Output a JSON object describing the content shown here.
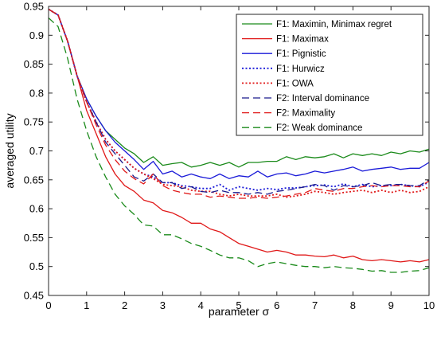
{
  "chart_data": {
    "type": "line",
    "xlabel": "parameter σ",
    "ylabel": "averaged utility",
    "xlim": [
      0,
      10
    ],
    "ylim": [
      0.45,
      0.95
    ],
    "xticks": [
      0,
      1,
      2,
      3,
      4,
      5,
      6,
      7,
      8,
      9,
      10
    ],
    "yticks": [
      0.45,
      0.5,
      0.55,
      0.6,
      0.65,
      0.7,
      0.75,
      0.8,
      0.85,
      0.9,
      0.95
    ],
    "ytick_labels": [
      "0.45",
      "0.5",
      "0.55",
      "0.6",
      "0.65",
      "0.7",
      "0.75",
      "0.8",
      "0.85",
      "0.9",
      "0.95"
    ],
    "grid": false,
    "legend_position": "top-right",
    "x": [
      0,
      0.25,
      0.5,
      0.75,
      1,
      1.25,
      1.5,
      1.75,
      2,
      2.25,
      2.5,
      2.75,
      3,
      3.25,
      3.5,
      3.75,
      4,
      4.25,
      4.5,
      4.75,
      5,
      5.25,
      5.5,
      5.75,
      6,
      6.25,
      6.5,
      6.75,
      7,
      7.25,
      7.5,
      7.75,
      8,
      8.25,
      8.5,
      8.75,
      9,
      9.25,
      9.5,
      9.75,
      10
    ],
    "series": [
      {
        "name": "F1: Maximin, Minimax regret",
        "color": "#1a8a1a",
        "dash": "solid",
        "values": [
          0.945,
          0.935,
          0.89,
          0.83,
          0.79,
          0.76,
          0.735,
          0.72,
          0.705,
          0.695,
          0.68,
          0.69,
          0.675,
          0.678,
          0.68,
          0.672,
          0.675,
          0.68,
          0.675,
          0.68,
          0.672,
          0.68,
          0.68,
          0.682,
          0.682,
          0.69,
          0.685,
          0.69,
          0.688,
          0.69,
          0.695,
          0.688,
          0.695,
          0.692,
          0.695,
          0.692,
          0.698,
          0.695,
          0.7,
          0.698,
          0.703
        ]
      },
      {
        "name": "F1: Maximax",
        "color": "#e01818",
        "dash": "solid",
        "values": [
          0.945,
          0.935,
          0.89,
          0.83,
          0.77,
          0.73,
          0.69,
          0.66,
          0.64,
          0.63,
          0.615,
          0.61,
          0.597,
          0.593,
          0.585,
          0.575,
          0.575,
          0.565,
          0.56,
          0.55,
          0.54,
          0.535,
          0.53,
          0.525,
          0.528,
          0.525,
          0.52,
          0.52,
          0.518,
          0.517,
          0.52,
          0.515,
          0.518,
          0.512,
          0.51,
          0.512,
          0.51,
          0.508,
          0.51,
          0.508,
          0.512
        ]
      },
      {
        "name": "F1: Pignistic",
        "color": "#1a1ad8",
        "dash": "solid",
        "values": [
          0.945,
          0.935,
          0.89,
          0.83,
          0.79,
          0.76,
          0.735,
          0.715,
          0.7,
          0.685,
          0.668,
          0.682,
          0.66,
          0.665,
          0.655,
          0.66,
          0.655,
          0.652,
          0.66,
          0.652,
          0.657,
          0.655,
          0.665,
          0.655,
          0.66,
          0.662,
          0.657,
          0.66,
          0.665,
          0.662,
          0.665,
          0.668,
          0.672,
          0.665,
          0.668,
          0.67,
          0.672,
          0.668,
          0.67,
          0.67,
          0.68
        ]
      },
      {
        "name": "F1: Hurwicz",
        "color": "#1a1ad8",
        "dash": "dotted",
        "values": [
          0.945,
          0.935,
          0.89,
          0.83,
          0.785,
          0.75,
          0.72,
          0.7,
          0.685,
          0.67,
          0.66,
          0.655,
          0.645,
          0.645,
          0.64,
          0.638,
          0.635,
          0.635,
          0.642,
          0.632,
          0.638,
          0.635,
          0.632,
          0.635,
          0.633,
          0.636,
          0.636,
          0.638,
          0.64,
          0.641,
          0.638,
          0.643,
          0.638,
          0.642,
          0.638,
          0.64,
          0.64,
          0.642,
          0.64,
          0.638,
          0.646
        ]
      },
      {
        "name": "F1: OWA",
        "color": "#e01818",
        "dash": "dotted",
        "values": [
          0.945,
          0.935,
          0.89,
          0.83,
          0.785,
          0.75,
          0.72,
          0.7,
          0.685,
          0.67,
          0.66,
          0.652,
          0.642,
          0.64,
          0.638,
          0.632,
          0.63,
          0.63,
          0.625,
          0.622,
          0.625,
          0.622,
          0.622,
          0.622,
          0.625,
          0.62,
          0.622,
          0.625,
          0.63,
          0.628,
          0.625,
          0.628,
          0.63,
          0.632,
          0.628,
          0.632,
          0.628,
          0.632,
          0.628,
          0.63,
          0.638
        ]
      },
      {
        "name": "F2: Interval dominance",
        "color": "#1a1a8c",
        "dash": "dashed",
        "values": [
          0.945,
          0.935,
          0.89,
          0.83,
          0.785,
          0.75,
          0.715,
          0.695,
          0.675,
          0.655,
          0.648,
          0.66,
          0.645,
          0.645,
          0.635,
          0.638,
          0.63,
          0.628,
          0.632,
          0.628,
          0.628,
          0.625,
          0.628,
          0.625,
          0.63,
          0.632,
          0.635,
          0.638,
          0.642,
          0.64,
          0.632,
          0.64,
          0.638,
          0.64,
          0.645,
          0.64,
          0.642,
          0.642,
          0.64,
          0.64,
          0.65
        ]
      },
      {
        "name": "F2: Maximality",
        "color": "#e01818",
        "dash": "dashed",
        "values": [
          0.945,
          0.935,
          0.89,
          0.83,
          0.785,
          0.745,
          0.71,
          0.685,
          0.665,
          0.652,
          0.643,
          0.66,
          0.64,
          0.632,
          0.628,
          0.625,
          0.625,
          0.62,
          0.622,
          0.62,
          0.618,
          0.618,
          0.62,
          0.618,
          0.62,
          0.622,
          0.625,
          0.628,
          0.635,
          0.632,
          0.63,
          0.635,
          0.635,
          0.638,
          0.64,
          0.638,
          0.64,
          0.64,
          0.638,
          0.638,
          0.648
        ]
      },
      {
        "name": "F2: Weak dominance",
        "color": "#1a8a1a",
        "dash": "dashed",
        "values": [
          0.93,
          0.915,
          0.86,
          0.79,
          0.735,
          0.69,
          0.655,
          0.625,
          0.605,
          0.59,
          0.572,
          0.57,
          0.555,
          0.555,
          0.548,
          0.54,
          0.535,
          0.528,
          0.52,
          0.515,
          0.515,
          0.51,
          0.5,
          0.505,
          0.508,
          0.505,
          0.502,
          0.5,
          0.5,
          0.498,
          0.5,
          0.498,
          0.497,
          0.495,
          0.492,
          0.493,
          0.49,
          0.49,
          0.492,
          0.493,
          0.498
        ]
      }
    ]
  }
}
